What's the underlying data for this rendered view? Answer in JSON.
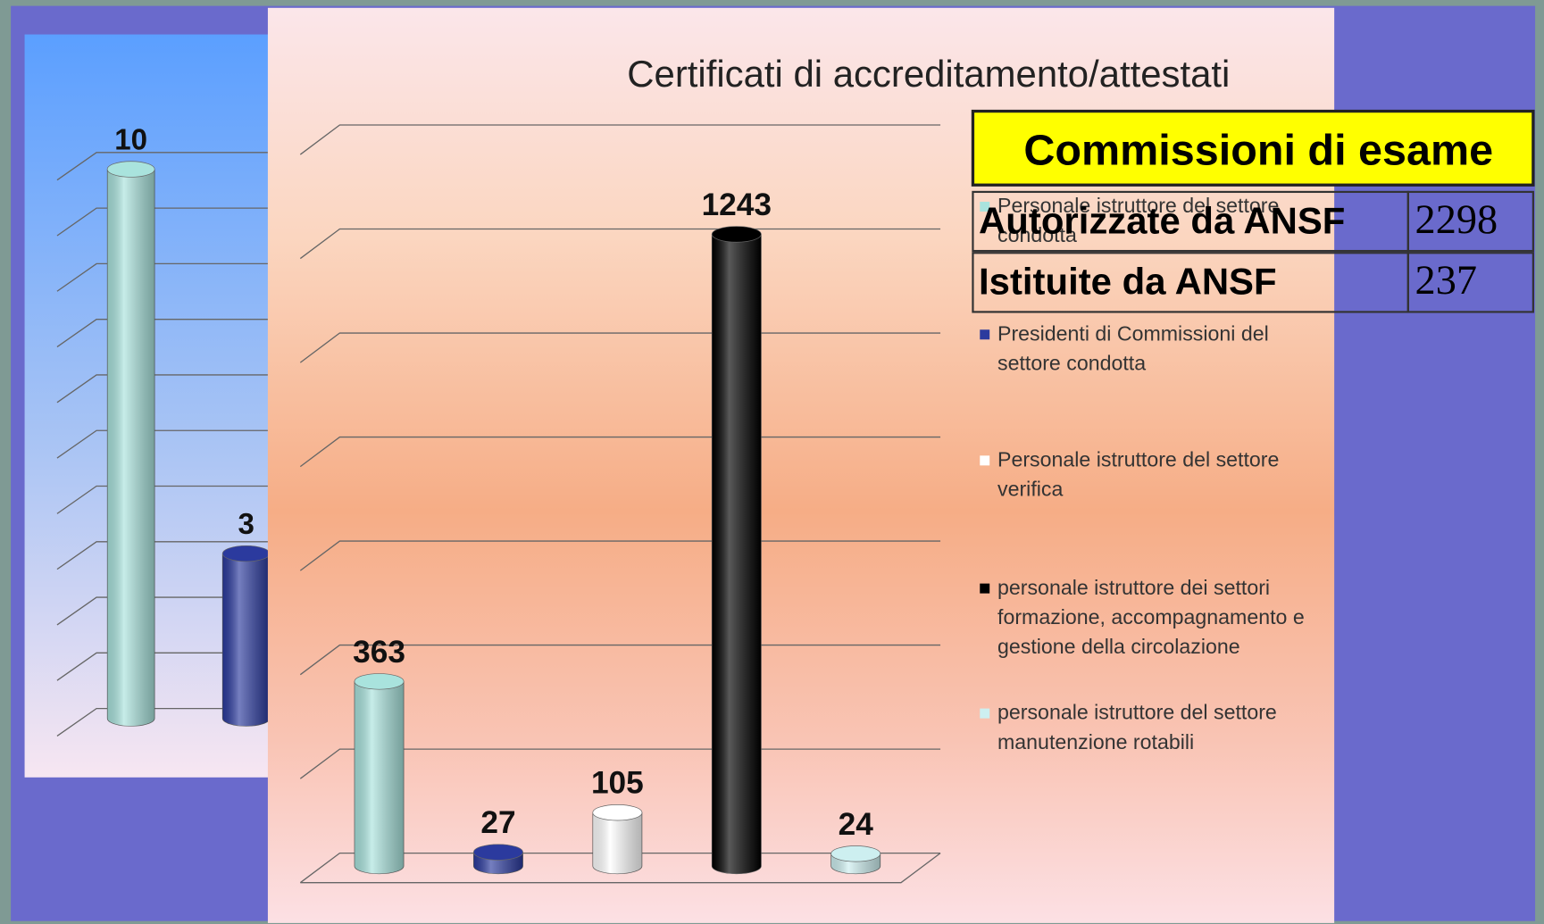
{
  "chart_data": [
    {
      "type": "bar",
      "values": [
        10,
        3
      ],
      "colors": [
        "#a9e3dd",
        "#2b3a9e"
      ],
      "ylim": [
        0,
        10
      ],
      "yticks": [
        0,
        1,
        2,
        3,
        4,
        5,
        6,
        7,
        8,
        9,
        10
      ],
      "grid": true
    },
    {
      "type": "bar",
      "title": "Certificati di accreditamento/attestati",
      "series": [
        {
          "name": "Personale istruttore del settore condotta",
          "color": "#a9e3dd",
          "values": [
            363
          ]
        },
        {
          "name": "Presidenti di Commissioni del settore condotta",
          "color": "#2b3a9e",
          "values": [
            27
          ]
        },
        {
          "name": "Personale istruttore del settore verifica",
          "color": "#ffffff",
          "values": [
            105
          ]
        },
        {
          "name": "personale istruttore dei settori formazione, accompagnamento e gestione della circolazione",
          "color": "#000000",
          "values": [
            1243
          ]
        },
        {
          "name": "personale istruttore del settore manutenzione rotabili",
          "color": "#cdeff0",
          "values": [
            24
          ]
        }
      ],
      "ylim": [
        0,
        1400
      ],
      "yticks": [
        0,
        200,
        400,
        600,
        800,
        1000,
        1200,
        1400
      ],
      "grid": true,
      "legend": "right"
    }
  ],
  "table": {
    "title": "Commissioni di esame",
    "rows": [
      [
        "Autorizzate da ANSF",
        2298
      ],
      [
        "Istituite da ANSF",
        237
      ]
    ]
  }
}
